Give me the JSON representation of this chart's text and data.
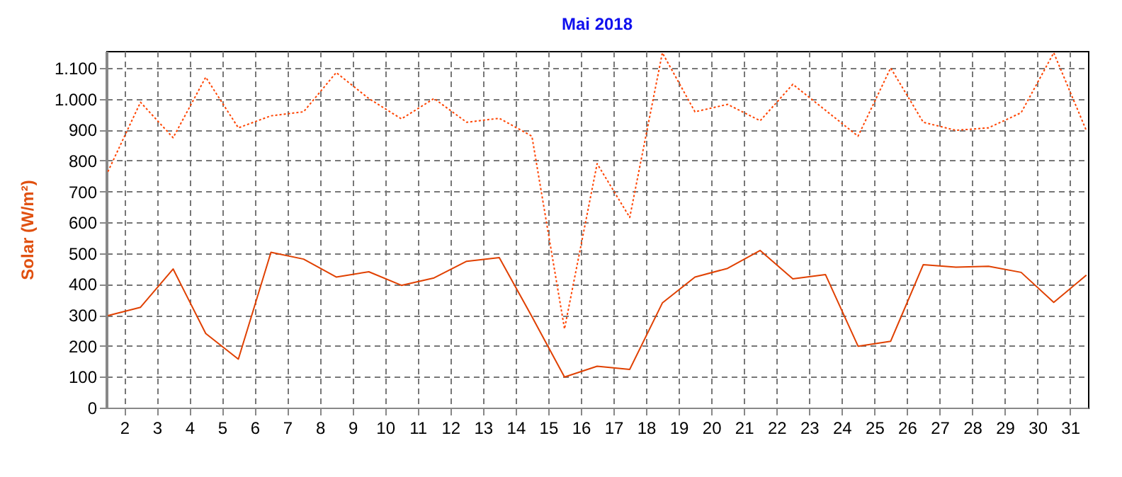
{
  "chart_data": {
    "type": "line",
    "title": "Mai 2018",
    "ylabel": "Solar  (W/m²)",
    "x": [
      1.5,
      2.5,
      3.5,
      4.5,
      5.5,
      6.5,
      7.5,
      8.5,
      9.5,
      10.5,
      11.5,
      12.5,
      13.5,
      14.5,
      15.5,
      16.5,
      17.5,
      18.5,
      19.5,
      20.5,
      21.5,
      22.5,
      23.5,
      24.5,
      25.5,
      26.5,
      27.5,
      28.5,
      29.5,
      30.5,
      31.5
    ],
    "xlim": [
      1.45,
      31.55
    ],
    "xticks": [
      2,
      3,
      4,
      5,
      6,
      7,
      8,
      9,
      10,
      11,
      12,
      13,
      14,
      15,
      16,
      17,
      18,
      19,
      20,
      21,
      22,
      23,
      24,
      25,
      26,
      27,
      28,
      29,
      30,
      31
    ],
    "ylim": [
      0,
      1155
    ],
    "yticks": [
      0,
      100,
      200,
      300,
      400,
      500,
      600,
      700,
      800,
      900,
      {
        "value": 1000,
        "label": "1.000"
      },
      {
        "value": 1100,
        "label": "1.100"
      }
    ],
    "grid": true,
    "marker": "none",
    "series": [
      {
        "color": "#ff4400",
        "line_style": "dotted",
        "values": [
          764,
          989,
          874,
          1070,
          906,
          945,
          958,
          1085,
          1001,
          935,
          1001,
          924,
          937,
          879,
          255,
          790,
          616,
          1149,
          958,
          982,
          929,
          1047,
          963,
          879,
          1100,
          924,
          898,
          906,
          955,
          1149,
          897
        ]
      },
      {
        "color": "#e04000",
        "line_style": "solid",
        "values": [
          298,
          325,
          449,
          240,
          157,
          503,
          481,
          423,
          440,
          396,
          420,
          474,
          486,
          295,
          99,
          134,
          124,
          339,
          423,
          451,
          509,
          417,
          431,
          199,
          215,
          463,
          455,
          458,
          438,
          341,
          429
        ]
      }
    ]
  }
}
